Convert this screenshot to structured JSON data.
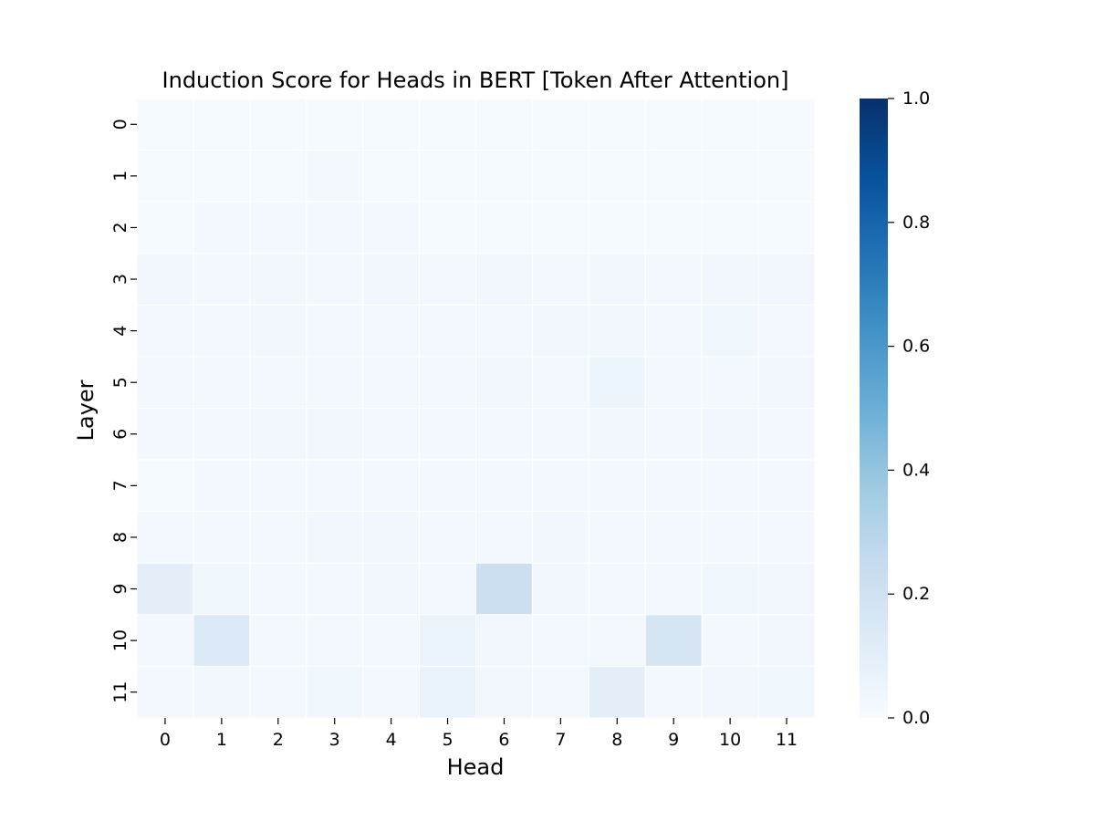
{
  "chart_data": {
    "type": "heatmap",
    "title": "Induction Score for Heads in BERT [Token After Attention]",
    "xlabel": "Head",
    "ylabel": "Layer",
    "x_categories": [
      "0",
      "1",
      "2",
      "3",
      "4",
      "5",
      "6",
      "7",
      "8",
      "9",
      "10",
      "11"
    ],
    "y_categories": [
      "0",
      "1",
      "2",
      "3",
      "4",
      "5",
      "6",
      "7",
      "8",
      "9",
      "10",
      "11"
    ],
    "values": [
      [
        0.01,
        0.01,
        0.01,
        0.01,
        0.01,
        0.01,
        0.01,
        0.01,
        0.01,
        0.01,
        0.01,
        0.01
      ],
      [
        0.01,
        0.01,
        0.01,
        0.02,
        0.01,
        0.01,
        0.01,
        0.01,
        0.01,
        0.01,
        0.01,
        0.01
      ],
      [
        0.01,
        0.02,
        0.02,
        0.02,
        0.02,
        0.01,
        0.01,
        0.01,
        0.01,
        0.01,
        0.01,
        0.01
      ],
      [
        0.03,
        0.02,
        0.03,
        0.02,
        0.03,
        0.02,
        0.03,
        0.02,
        0.03,
        0.02,
        0.03,
        0.03
      ],
      [
        0.02,
        0.02,
        0.03,
        0.02,
        0.02,
        0.02,
        0.02,
        0.03,
        0.03,
        0.02,
        0.04,
        0.02
      ],
      [
        0.02,
        0.02,
        0.02,
        0.02,
        0.02,
        0.02,
        0.03,
        0.02,
        0.05,
        0.02,
        0.02,
        0.03
      ],
      [
        0.02,
        0.02,
        0.03,
        0.03,
        0.02,
        0.02,
        0.02,
        0.02,
        0.03,
        0.02,
        0.03,
        0.02
      ],
      [
        0.01,
        0.02,
        0.02,
        0.02,
        0.02,
        0.02,
        0.02,
        0.02,
        0.02,
        0.02,
        0.02,
        0.02
      ],
      [
        0.02,
        0.02,
        0.02,
        0.03,
        0.03,
        0.02,
        0.02,
        0.03,
        0.02,
        0.02,
        0.02,
        0.02
      ],
      [
        0.1,
        0.04,
        0.02,
        0.02,
        0.03,
        0.02,
        0.22,
        0.03,
        0.02,
        0.02,
        0.04,
        0.03
      ],
      [
        0.02,
        0.14,
        0.02,
        0.02,
        0.02,
        0.06,
        0.03,
        0.02,
        0.02,
        0.17,
        0.02,
        0.03
      ],
      [
        0.02,
        0.03,
        0.02,
        0.04,
        0.02,
        0.07,
        0.03,
        0.02,
        0.1,
        0.02,
        0.03,
        0.04
      ]
    ],
    "colorbar": {
      "vmin": 0.0,
      "vmax": 1.0,
      "ticks": [
        "0.0",
        "0.2",
        "0.4",
        "0.6",
        "0.8",
        "1.0"
      ],
      "colormap": "Blues"
    },
    "grid": false,
    "cell_separator_color": "#ffffff"
  }
}
